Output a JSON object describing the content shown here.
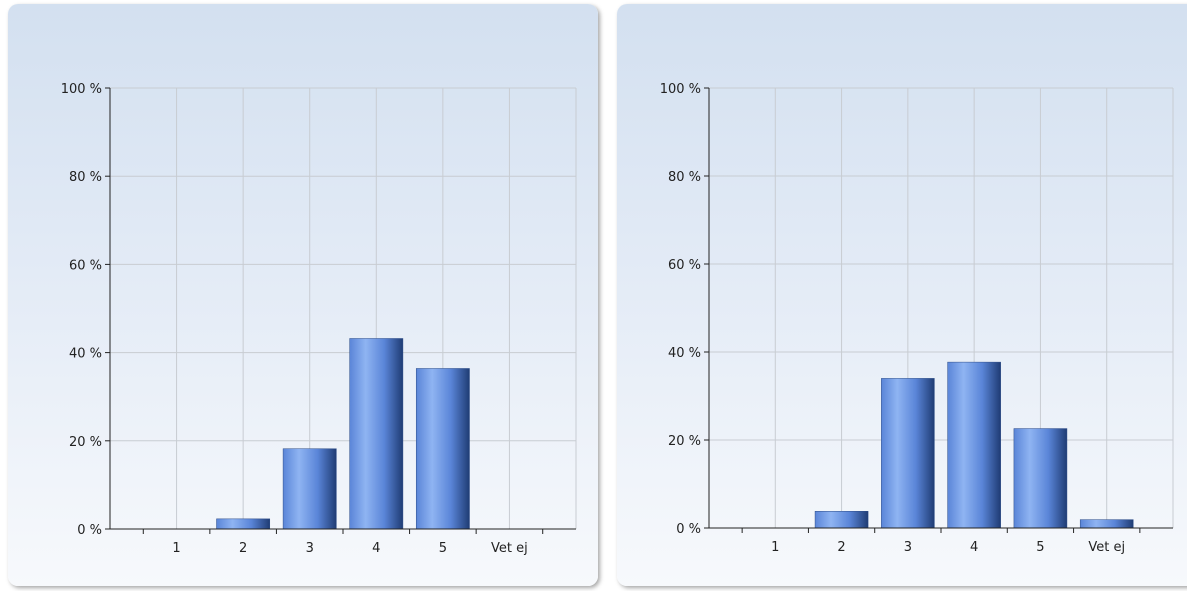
{
  "chart_data": [
    {
      "type": "bar",
      "categories": [
        "1",
        "2",
        "3",
        "4",
        "5",
        "Vet ej"
      ],
      "values": [
        0,
        2.3,
        18.2,
        43.2,
        36.4,
        0
      ],
      "ylim": [
        0,
        100
      ],
      "yticks": [
        "0 %",
        "20 %",
        "40 %",
        "60 %",
        "80 %",
        "100 %"
      ],
      "grid": true,
      "title": "",
      "xlabel": "",
      "ylabel": ""
    },
    {
      "type": "bar",
      "categories": [
        "1",
        "2",
        "3",
        "4",
        "5",
        "Vet ej"
      ],
      "values": [
        0,
        3.8,
        34.0,
        37.7,
        22.6,
        1.9
      ],
      "ylim": [
        0,
        100
      ],
      "yticks": [
        "0 %",
        "20 %",
        "40 %",
        "60 %",
        "80 %",
        "100 %"
      ],
      "grid": true,
      "title": "",
      "xlabel": "",
      "ylabel": ""
    }
  ],
  "colors": {
    "bar_light": "#8fb4f2",
    "bar_mid": "#5a85d8",
    "bar_dark": "#1f3c74",
    "grid": "#c8ccd2",
    "axis": "#222222"
  }
}
